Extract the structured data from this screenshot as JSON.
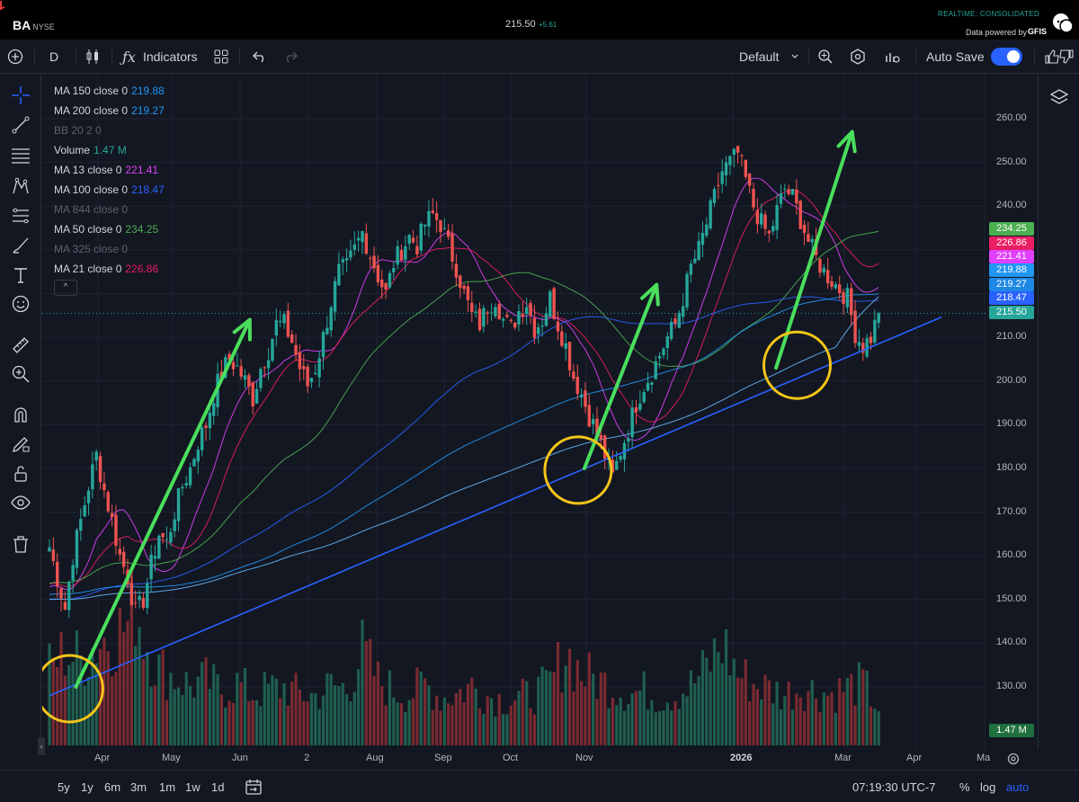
{
  "header": {
    "symbol": "BA",
    "exchange": "NYSE",
    "price": "215.50",
    "change": "+5.61",
    "realtime": "REALTIME: CONSOLIDATED",
    "powered_by": "Data powered by",
    "provider": "GFIS"
  },
  "toolbar": {
    "interval": "D",
    "indicators_label": "Indicators",
    "layout_name": "Default",
    "autosave_label": "Auto Save",
    "autosave_on": true
  },
  "legend": [
    {
      "name": "MA 150 close 0",
      "value": "219.88",
      "color": "#2196f3",
      "dim": false
    },
    {
      "name": "MA 200 close 0",
      "value": "219.27",
      "color": "#2196f3",
      "dim": false
    },
    {
      "name": "BB 20 2 0",
      "value": "",
      "color": "#5d606b",
      "dim": true
    },
    {
      "name": "Volume",
      "value": "1.47 M",
      "color": "#26a69a",
      "dim": false
    },
    {
      "name": "MA 13 close 0",
      "value": "221.41",
      "color": "#e040fb",
      "dim": false
    },
    {
      "name": "MA 100 close 0",
      "value": "218.47",
      "color": "#2962ff",
      "dim": false
    },
    {
      "name": "MA 844 close 0",
      "value": "",
      "color": "#5d606b",
      "dim": true
    },
    {
      "name": "MA 50 close 0",
      "value": "234.25",
      "color": "#4caf50",
      "dim": false
    },
    {
      "name": "MA 325 close 0",
      "value": "",
      "color": "#5d606b",
      "dim": true
    },
    {
      "name": "MA 21 close 0",
      "value": "226.86",
      "color": "#e91e63",
      "dim": false
    }
  ],
  "colors": {
    "up": "#26a69a",
    "down": "#ef5350",
    "trendline": "#2962ff",
    "arrow": "#4ade5c",
    "circle": "#f5c518",
    "ma13": "#e040fb",
    "ma21": "#e91e63",
    "ma50": "#4caf50",
    "ma100": "#2962ff",
    "ma150": "#2196f3",
    "ma200": "#64b5f6"
  },
  "chart_data": {
    "type": "candlestick",
    "y_ticks": [
      "260.00",
      "250.00",
      "240.00",
      "230.00",
      "220.00",
      "210.00",
      "200.00",
      "190.00",
      "180.00",
      "170.00",
      "160.00",
      "150.00",
      "140.00",
      "130.00"
    ],
    "x_ticks": [
      "Apr",
      "May",
      "Jun",
      "2",
      "Aug",
      "Sep",
      "Oct",
      "Nov",
      "2026",
      "Mar",
      "Apr",
      "Ma"
    ],
    "ylim": [
      122,
      262
    ],
    "last_price": 215.5,
    "price_labels": [
      {
        "text": "234.25",
        "value": 234.25,
        "color": "#4caf50"
      },
      {
        "text": "226.86",
        "value": 226.86,
        "color": "#e91e63"
      },
      {
        "text": "221.41",
        "value": 221.41,
        "color": "#e040fb"
      },
      {
        "text": "219.88",
        "value": 219.88,
        "color": "#2196f3"
      },
      {
        "text": "219.27",
        "value": 219.27,
        "color": "#1e88e5"
      },
      {
        "text": "218.47",
        "value": 218.47,
        "color": "#2962ff"
      },
      {
        "text": "215.50",
        "value": 215.5,
        "color": "#26a69a"
      }
    ],
    "volume_label": "1.47 M",
    "price_path": [
      [
        0,
        162
      ],
      [
        2,
        155
      ],
      [
        4,
        148
      ],
      [
        6,
        160
      ],
      [
        8,
        168
      ],
      [
        10,
        176
      ],
      [
        12,
        183
      ],
      [
        14,
        175
      ],
      [
        16,
        168
      ],
      [
        18,
        160
      ],
      [
        20,
        155
      ],
      [
        22,
        147
      ],
      [
        24,
        150
      ],
      [
        26,
        158
      ],
      [
        28,
        165
      ],
      [
        30,
        163
      ],
      [
        32,
        170
      ],
      [
        34,
        176
      ],
      [
        36,
        180
      ],
      [
        38,
        186
      ],
      [
        40,
        190
      ],
      [
        42,
        197
      ],
      [
        44,
        202
      ],
      [
        46,
        205
      ],
      [
        48,
        203
      ],
      [
        50,
        200
      ],
      [
        52,
        196
      ],
      [
        54,
        203
      ],
      [
        56,
        207
      ],
      [
        58,
        213
      ],
      [
        60,
        213
      ],
      [
        62,
        209
      ],
      [
        64,
        203
      ],
      [
        66,
        199
      ],
      [
        68,
        203
      ],
      [
        70,
        210
      ],
      [
        72,
        218
      ],
      [
        74,
        225
      ],
      [
        76,
        226
      ],
      [
        78,
        230
      ],
      [
        80,
        234
      ],
      [
        82,
        229
      ],
      [
        84,
        224
      ],
      [
        86,
        220
      ],
      [
        88,
        227
      ],
      [
        90,
        230
      ],
      [
        92,
        233
      ],
      [
        94,
        231
      ],
      [
        96,
        236
      ],
      [
        98,
        238
      ],
      [
        100,
        236
      ],
      [
        102,
        231
      ],
      [
        104,
        226
      ],
      [
        106,
        220
      ],
      [
        108,
        215
      ],
      [
        110,
        213
      ],
      [
        112,
        217
      ],
      [
        114,
        219
      ],
      [
        116,
        214
      ],
      [
        118,
        212
      ],
      [
        120,
        216
      ],
      [
        122,
        218
      ],
      [
        124,
        212
      ],
      [
        126,
        214
      ],
      [
        128,
        219
      ],
      [
        130,
        213
      ],
      [
        132,
        208
      ],
      [
        134,
        201
      ],
      [
        136,
        197
      ],
      [
        138,
        192
      ],
      [
        140,
        188
      ],
      [
        142,
        183
      ],
      [
        144,
        178
      ],
      [
        146,
        184
      ],
      [
        148,
        189
      ],
      [
        150,
        195
      ],
      [
        152,
        199
      ],
      [
        154,
        202
      ],
      [
        156,
        206
      ],
      [
        158,
        210
      ],
      [
        160,
        213
      ],
      [
        162,
        219
      ],
      [
        164,
        226
      ],
      [
        166,
        230
      ],
      [
        168,
        236
      ],
      [
        170,
        242
      ],
      [
        172,
        248
      ],
      [
        174,
        250
      ],
      [
        176,
        252
      ],
      [
        178,
        246
      ],
      [
        180,
        240
      ],
      [
        182,
        236
      ],
      [
        184,
        233
      ],
      [
        186,
        239
      ],
      [
        188,
        244
      ],
      [
        190,
        242
      ],
      [
        192,
        237
      ],
      [
        194,
        232
      ],
      [
        196,
        228
      ],
      [
        198,
        225
      ],
      [
        200,
        223
      ],
      [
        202,
        221
      ],
      [
        204,
        219
      ],
      [
        206,
        211
      ],
      [
        208,
        208
      ],
      [
        210,
        210
      ],
      [
        212,
        215.5
      ]
    ],
    "volume_path": [
      [
        0,
        0.45
      ],
      [
        4,
        0.55
      ],
      [
        8,
        0.5
      ],
      [
        12,
        0.6
      ],
      [
        16,
        0.65
      ],
      [
        20,
        0.7
      ],
      [
        22,
        0.85
      ],
      [
        24,
        0.65
      ],
      [
        28,
        0.45
      ],
      [
        32,
        0.4
      ],
      [
        36,
        0.35
      ],
      [
        40,
        0.38
      ],
      [
        44,
        0.32
      ],
      [
        48,
        0.36
      ],
      [
        52,
        0.3
      ],
      [
        56,
        0.33
      ],
      [
        60,
        0.34
      ],
      [
        64,
        0.3
      ],
      [
        68,
        0.29
      ],
      [
        72,
        0.35
      ],
      [
        76,
        0.33
      ],
      [
        80,
        0.55
      ],
      [
        84,
        0.38
      ],
      [
        88,
        0.32
      ],
      [
        92,
        0.3
      ],
      [
        96,
        0.36
      ],
      [
        100,
        0.28
      ],
      [
        104,
        0.3
      ],
      [
        108,
        0.35
      ],
      [
        112,
        0.29
      ],
      [
        116,
        0.27
      ],
      [
        120,
        0.28
      ],
      [
        124,
        0.3
      ],
      [
        128,
        0.36
      ],
      [
        132,
        0.55
      ],
      [
        136,
        0.42
      ],
      [
        140,
        0.38
      ],
      [
        144,
        0.35
      ],
      [
        148,
        0.3
      ],
      [
        152,
        0.32
      ],
      [
        156,
        0.28
      ],
      [
        160,
        0.3
      ],
      [
        164,
        0.35
      ],
      [
        168,
        0.45
      ],
      [
        172,
        0.6
      ],
      [
        176,
        0.42
      ],
      [
        180,
        0.36
      ],
      [
        184,
        0.33
      ],
      [
        188,
        0.3
      ],
      [
        192,
        0.34
      ],
      [
        196,
        0.32
      ],
      [
        200,
        0.3
      ],
      [
        204,
        0.34
      ],
      [
        208,
        0.36
      ],
      [
        212,
        0.22
      ]
    ],
    "ma": [
      {
        "key": "ma13",
        "period": 13,
        "last": 221.41
      },
      {
        "key": "ma21",
        "period": 21,
        "last": 226.86
      },
      {
        "key": "ma50",
        "period": 50,
        "last": 234.25
      },
      {
        "key": "ma100",
        "period": 100,
        "last": 218.47
      },
      {
        "key": "ma150",
        "period": 150,
        "last": 219.88
      },
      {
        "key": "ma200",
        "period": 200,
        "last": 219.27
      }
    ],
    "trendline": [
      [
        0,
        128
      ],
      [
        212,
        214
      ]
    ],
    "arrows": [
      [
        [
          4,
          130
        ],
        [
          48,
          214
        ]
      ],
      [
        [
          134,
          180
        ],
        [
          152,
          222
        ]
      ],
      [
        [
          183,
          203
        ],
        [
          202,
          257
        ]
      ]
    ],
    "circles": [
      [
        4,
        130
      ],
      [
        134,
        180
      ],
      [
        190,
        204
      ]
    ]
  },
  "bottombar": {
    "ranges": [
      "5y",
      "1y",
      "6m",
      "3m",
      "1m",
      "1w",
      "1d"
    ],
    "time": "07:19:30 UTC-7",
    "percent": "%",
    "log": "log",
    "auto": "auto"
  }
}
